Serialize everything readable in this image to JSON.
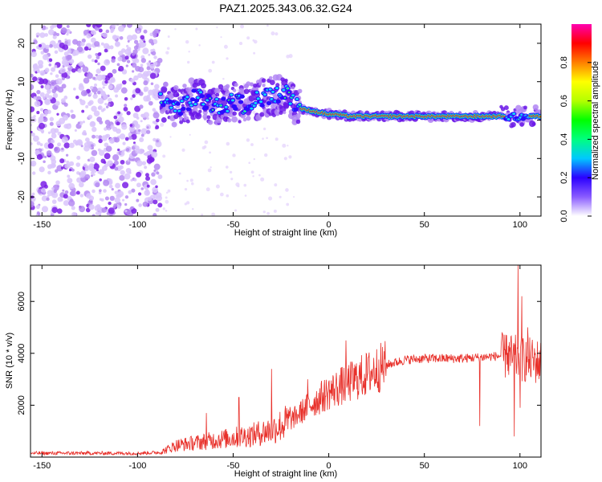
{
  "title": "PAZ1.2025.343.06.32.G24",
  "chart_data": [
    {
      "type": "heatmap",
      "name": "spectrogram",
      "xlabel": "Height of straight line (km)",
      "ylabel": "Frequency (Hz)",
      "xlim": [
        -156,
        111
      ],
      "ylim": [
        -25,
        25
      ],
      "xticks": [
        -150,
        -100,
        -50,
        0,
        50,
        100
      ],
      "yticks": [
        -20,
        -10,
        0,
        10,
        20
      ],
      "noise_region": [
        -156,
        -88
      ],
      "ridge": [
        {
          "x": -86,
          "y": 5
        },
        {
          "x": -80,
          "y": 3.5
        },
        {
          "x": -75,
          "y": 4
        },
        {
          "x": -70,
          "y": 6
        },
        {
          "x": -65,
          "y": 5
        },
        {
          "x": -60,
          "y": 4
        },
        {
          "x": -55,
          "y": 4
        },
        {
          "x": -50,
          "y": 5
        },
        {
          "x": -45,
          "y": 4
        },
        {
          "x": -40,
          "y": 5
        },
        {
          "x": -35,
          "y": 6
        },
        {
          "x": -30,
          "y": 6
        },
        {
          "x": -25,
          "y": 6.5
        },
        {
          "x": -22,
          "y": 7
        },
        {
          "x": -18,
          "y": 4
        },
        {
          "x": -15,
          "y": 3
        },
        {
          "x": -10,
          "y": 2.5
        },
        {
          "x": -5,
          "y": 2
        },
        {
          "x": 0,
          "y": 1.5
        },
        {
          "x": 5,
          "y": 1.5
        },
        {
          "x": 10,
          "y": 1
        },
        {
          "x": 20,
          "y": 1
        },
        {
          "x": 40,
          "y": 1
        },
        {
          "x": 60,
          "y": 1
        },
        {
          "x": 80,
          "y": 1
        },
        {
          "x": 95,
          "y": 1
        },
        {
          "x": 100,
          "y": 1
        },
        {
          "x": 111,
          "y": 1
        }
      ],
      "colorbar": {
        "label": "Normalized spectral amplitude",
        "range": [
          0,
          1
        ],
        "ticks": [
          "0.0",
          "0.2",
          "0.4",
          "0.6",
          "0.8"
        ],
        "tick_values": [
          0,
          0.2,
          0.4,
          0.6,
          0.8
        ]
      }
    },
    {
      "type": "line",
      "name": "snr",
      "xlabel": "Height of straight line (km)",
      "ylabel": "SNR (10 * v/v)",
      "xlim": [
        -156,
        111
      ],
      "ylim": [
        0,
        7400
      ],
      "xticks": [
        -150,
        -100,
        -50,
        0,
        50,
        100
      ],
      "yticks": [
        2000,
        4000,
        6000
      ],
      "color": "#e8302a",
      "envelope": [
        {
          "x": -156,
          "y": 150
        },
        {
          "x": -100,
          "y": 150
        },
        {
          "x": -88,
          "y": 180
        },
        {
          "x": -80,
          "y": 450
        },
        {
          "x": -70,
          "y": 550
        },
        {
          "x": -60,
          "y": 650
        },
        {
          "x": -50,
          "y": 750
        },
        {
          "x": -40,
          "y": 850
        },
        {
          "x": -30,
          "y": 1050
        },
        {
          "x": -20,
          "y": 1400
        },
        {
          "x": -10,
          "y": 2000
        },
        {
          "x": 0,
          "y": 2500
        },
        {
          "x": 10,
          "y": 2850
        },
        {
          "x": 20,
          "y": 3200
        },
        {
          "x": 30,
          "y": 3550
        },
        {
          "x": 40,
          "y": 3750
        },
        {
          "x": 50,
          "y": 3800
        },
        {
          "x": 60,
          "y": 3800
        },
        {
          "x": 70,
          "y": 3800
        },
        {
          "x": 80,
          "y": 3850
        },
        {
          "x": 90,
          "y": 3900
        },
        {
          "x": 100,
          "y": 3800
        },
        {
          "x": 111,
          "y": 3650
        }
      ],
      "peaks": [
        {
          "x": -64,
          "y": 1700
        },
        {
          "x": -47,
          "y": 2300
        },
        {
          "x": -30,
          "y": 3400
        },
        {
          "x": -11,
          "y": 3000
        },
        {
          "x": 9,
          "y": 4500
        },
        {
          "x": 93,
          "y": 4700
        },
        {
          "x": 97,
          "y": 5900
        },
        {
          "x": 99,
          "y": 7400
        },
        {
          "x": 101,
          "y": 6200
        },
        {
          "x": 104,
          "y": 5000
        }
      ],
      "dips": [
        {
          "x": 79,
          "y": 1200
        },
        {
          "x": 97,
          "y": 800
        },
        {
          "x": 100,
          "y": 1900
        }
      ]
    }
  ]
}
